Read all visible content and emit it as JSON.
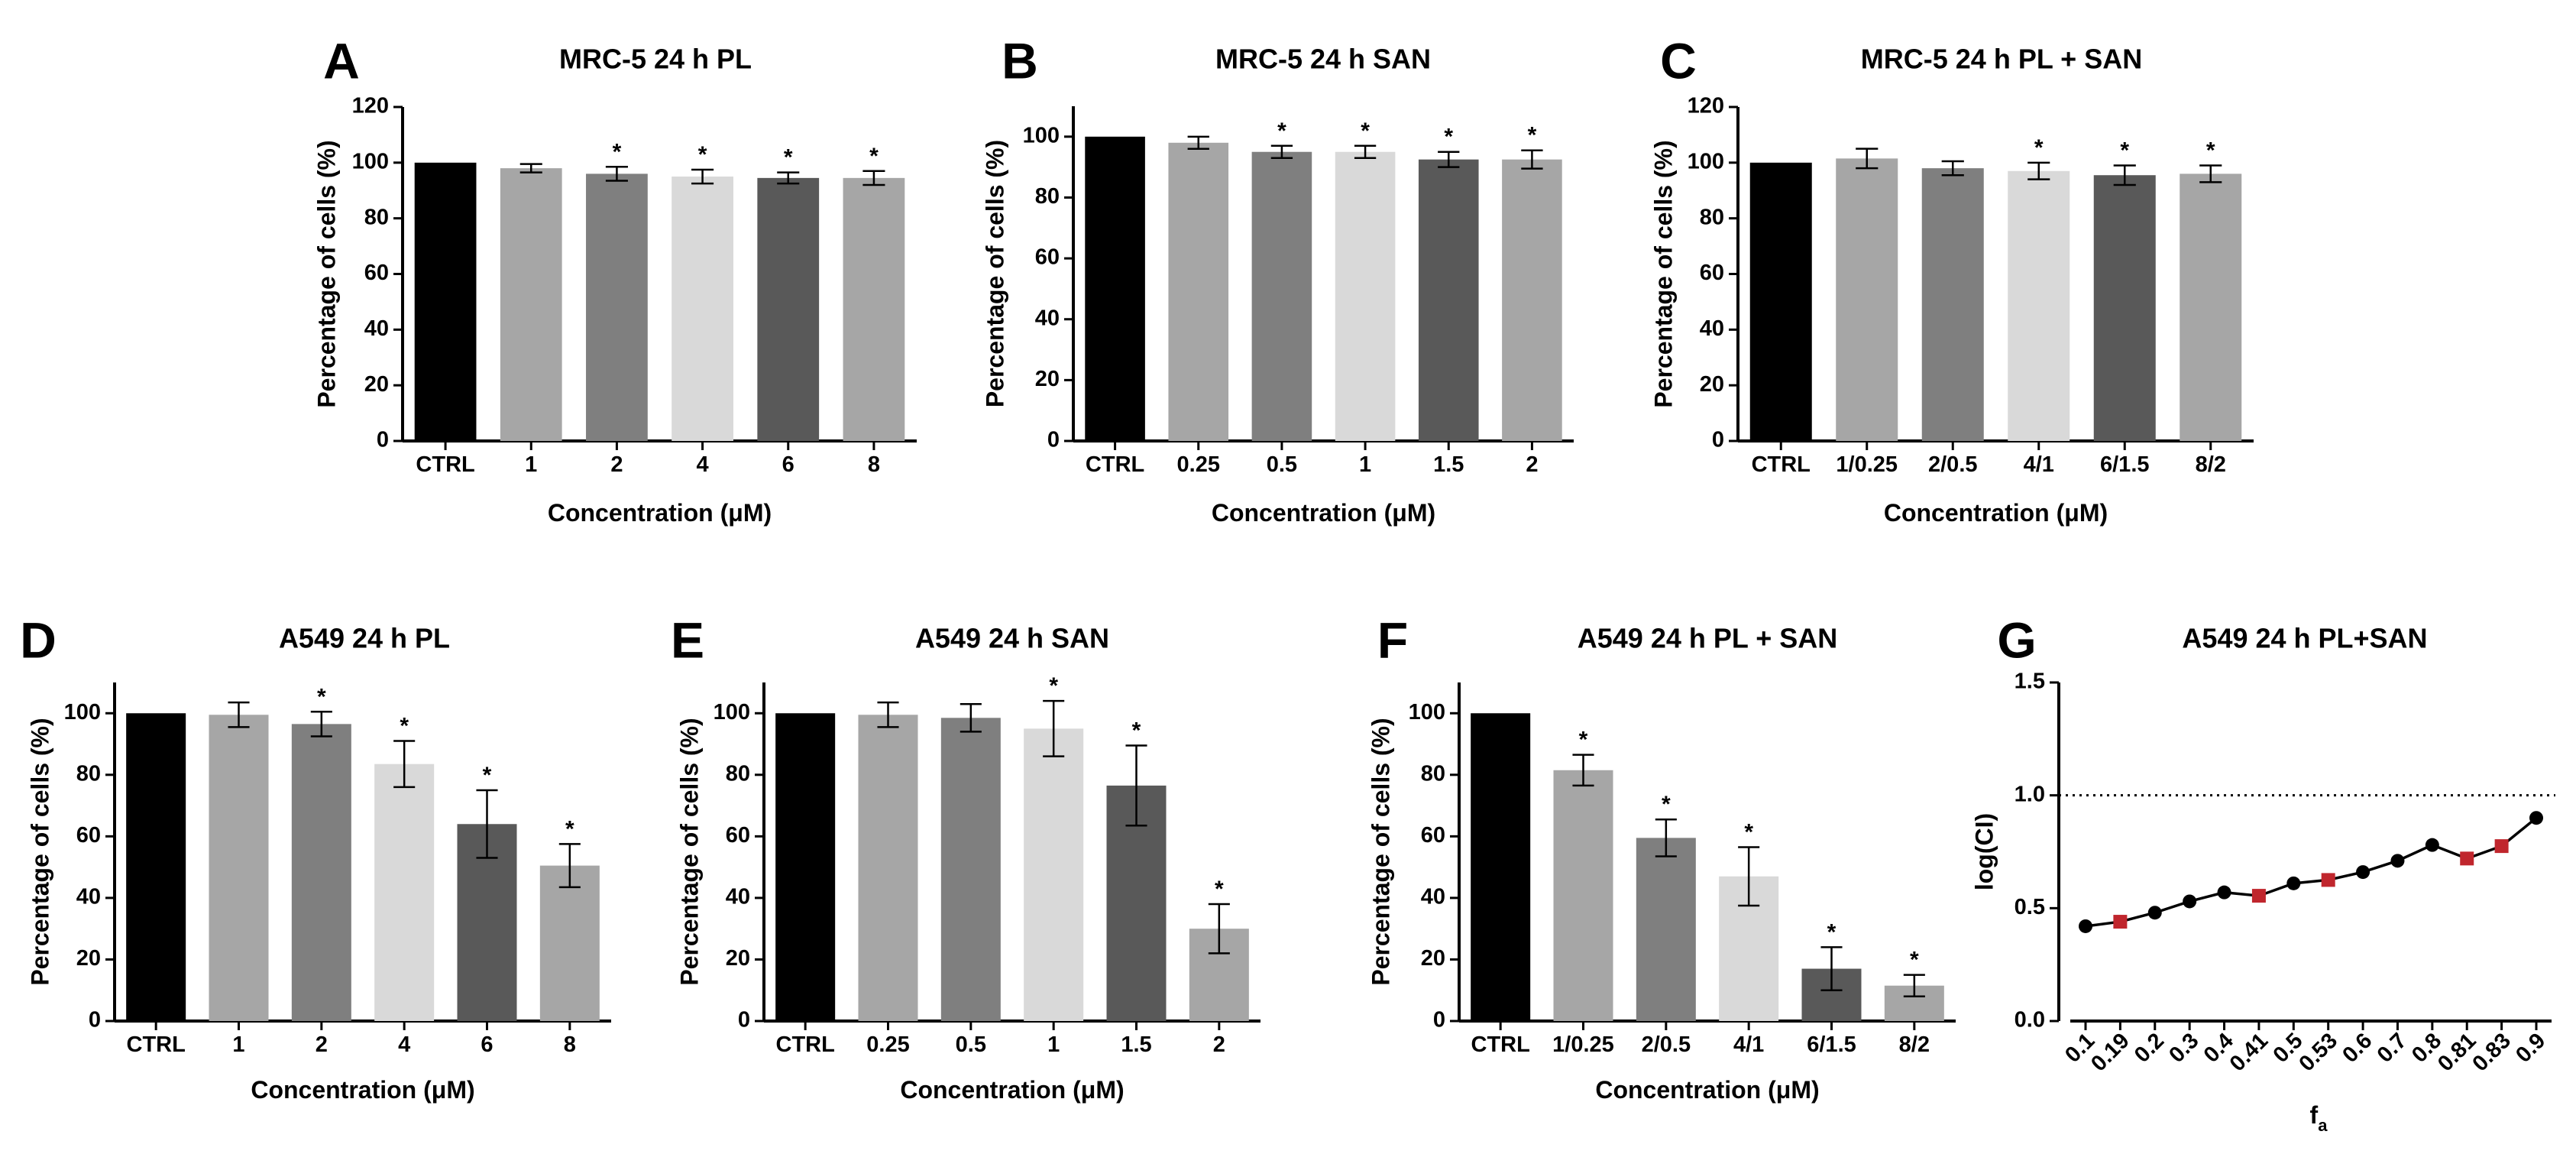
{
  "chart_data": [
    {
      "id": "A",
      "type": "bar",
      "letter": "A",
      "title": "MRC-5 24 h PL",
      "xlabel": "Concentration (μM)",
      "ylabel": "Percentage of cells (%)",
      "ylim": [
        0,
        120
      ],
      "yticks": [
        0,
        20,
        40,
        60,
        80,
        100,
        120
      ],
      "categories": [
        "CTRL",
        "1",
        "2",
        "4",
        "6",
        "8"
      ],
      "values": [
        100,
        98,
        96,
        95,
        94.5,
        94.5
      ],
      "errors": [
        0,
        1.5,
        2.5,
        2.5,
        2,
        2.5
      ],
      "significant": [
        false,
        false,
        true,
        true,
        true,
        true
      ],
      "bar_colors": [
        "#000000",
        "#a6a6a6",
        "#7f7f7f",
        "#d9d9d9",
        "#595959",
        "#a6a6a6"
      ]
    },
    {
      "id": "B",
      "type": "bar",
      "letter": "B",
      "title": "MRC-5 24 h SAN",
      "xlabel": "Concentration (μM)",
      "ylabel": "Percentage of cells (%)",
      "ylim": [
        0,
        110
      ],
      "yticks": [
        0,
        20,
        40,
        60,
        80,
        100
      ],
      "categories": [
        "CTRL",
        "0.25",
        "0.5",
        "1",
        "1.5",
        "2"
      ],
      "values": [
        100,
        98,
        95,
        95,
        92.5,
        92.5
      ],
      "errors": [
        0,
        2,
        2,
        2,
        2.5,
        3
      ],
      "significant": [
        false,
        false,
        true,
        true,
        true,
        true
      ],
      "bar_colors": [
        "#000000",
        "#a6a6a6",
        "#7f7f7f",
        "#d9d9d9",
        "#595959",
        "#a6a6a6"
      ]
    },
    {
      "id": "C",
      "type": "bar",
      "letter": "C",
      "title": "MRC-5 24 h PL + SAN",
      "xlabel": "Concentration (μM)",
      "ylabel": "Percentage of cells (%)",
      "ylim": [
        0,
        120
      ],
      "yticks": [
        0,
        20,
        40,
        60,
        80,
        100,
        120
      ],
      "categories": [
        "CTRL",
        "1/0.25",
        "2/0.5",
        "4/1",
        "6/1.5",
        "8/2"
      ],
      "values": [
        100,
        101.5,
        98,
        97,
        95.5,
        96
      ],
      "errors": [
        0,
        3.5,
        2.5,
        3,
        3.5,
        3
      ],
      "significant": [
        false,
        false,
        false,
        true,
        true,
        true
      ],
      "bar_colors": [
        "#000000",
        "#a6a6a6",
        "#7f7f7f",
        "#d9d9d9",
        "#595959",
        "#a6a6a6"
      ]
    },
    {
      "id": "D",
      "type": "bar",
      "letter": "D",
      "title": "A549 24 h PL",
      "xlabel": "Concentration (μM)",
      "ylabel": "Percentage of cells (%)",
      "ylim": [
        0,
        110
      ],
      "yticks": [
        0,
        20,
        40,
        60,
        80,
        100
      ],
      "categories": [
        "CTRL",
        "1",
        "2",
        "4",
        "6",
        "8"
      ],
      "values": [
        100,
        99.5,
        96.5,
        83.5,
        64,
        50.5
      ],
      "errors": [
        0,
        4,
        4,
        7.5,
        11,
        7
      ],
      "significant": [
        false,
        false,
        true,
        true,
        true,
        true
      ],
      "bar_colors": [
        "#000000",
        "#a6a6a6",
        "#7f7f7f",
        "#d9d9d9",
        "#595959",
        "#a6a6a6"
      ]
    },
    {
      "id": "E",
      "type": "bar",
      "letter": "E",
      "title": "A549 24 h SAN",
      "xlabel": "Concentration (μM)",
      "ylabel": "Percentage of cells (%)",
      "ylim": [
        0,
        110
      ],
      "yticks": [
        0,
        20,
        40,
        60,
        80,
        100
      ],
      "categories": [
        "CTRL",
        "0.25",
        "0.5",
        "1",
        "1.5",
        "2"
      ],
      "values": [
        100,
        99.5,
        98.5,
        95,
        76.5,
        30
      ],
      "errors": [
        0,
        4,
        4.5,
        9,
        13,
        8
      ],
      "significant": [
        false,
        false,
        false,
        true,
        true,
        true
      ],
      "bar_colors": [
        "#000000",
        "#a6a6a6",
        "#7f7f7f",
        "#d9d9d9",
        "#595959",
        "#a6a6a6"
      ]
    },
    {
      "id": "F",
      "type": "bar",
      "letter": "F",
      "title": "A549 24 h PL + SAN",
      "xlabel": "Concentration (μM)",
      "ylabel": "Percentage of cells (%)",
      "ylim": [
        0,
        110
      ],
      "yticks": [
        0,
        20,
        40,
        60,
        80,
        100
      ],
      "categories": [
        "CTRL",
        "1/0.25",
        "2/0.5",
        "4/1",
        "6/1.5",
        "8/2"
      ],
      "values": [
        100,
        81.5,
        59.5,
        47,
        17,
        11.5
      ],
      "errors": [
        0,
        5,
        6,
        9.5,
        7,
        3.5
      ],
      "significant": [
        false,
        true,
        true,
        true,
        true,
        true
      ],
      "bar_colors": [
        "#000000",
        "#a6a6a6",
        "#7f7f7f",
        "#d9d9d9",
        "#595959",
        "#a6a6a6"
      ]
    },
    {
      "id": "G",
      "type": "line",
      "letter": "G",
      "title": "A549 24 h PL+SAN",
      "xlabel": "f",
      "xlabel_sub": "a",
      "ylabel": "log(CI)",
      "ylim": [
        0,
        1.5
      ],
      "yticks": [
        "0.0",
        "0.5",
        "1.0",
        "1.5"
      ],
      "reference_line": 1.0,
      "categories": [
        "0.1",
        "0.19",
        "0.2",
        "0.3",
        "0.4",
        "0.41",
        "0.5",
        "0.53",
        "0.6",
        "0.7",
        "0.8",
        "0.81",
        "0.83",
        "0.9"
      ],
      "values": [
        0.42,
        0.44,
        0.48,
        0.53,
        0.57,
        0.555,
        0.61,
        0.625,
        0.66,
        0.71,
        0.78,
        0.72,
        0.775,
        0.9
      ],
      "highlighted": [
        false,
        true,
        false,
        false,
        false,
        true,
        false,
        true,
        false,
        false,
        false,
        true,
        true,
        false
      ],
      "colors": {
        "point": "#000000",
        "highlight": "#c0262d",
        "line": "#000000",
        "reference": "#000000"
      }
    }
  ]
}
